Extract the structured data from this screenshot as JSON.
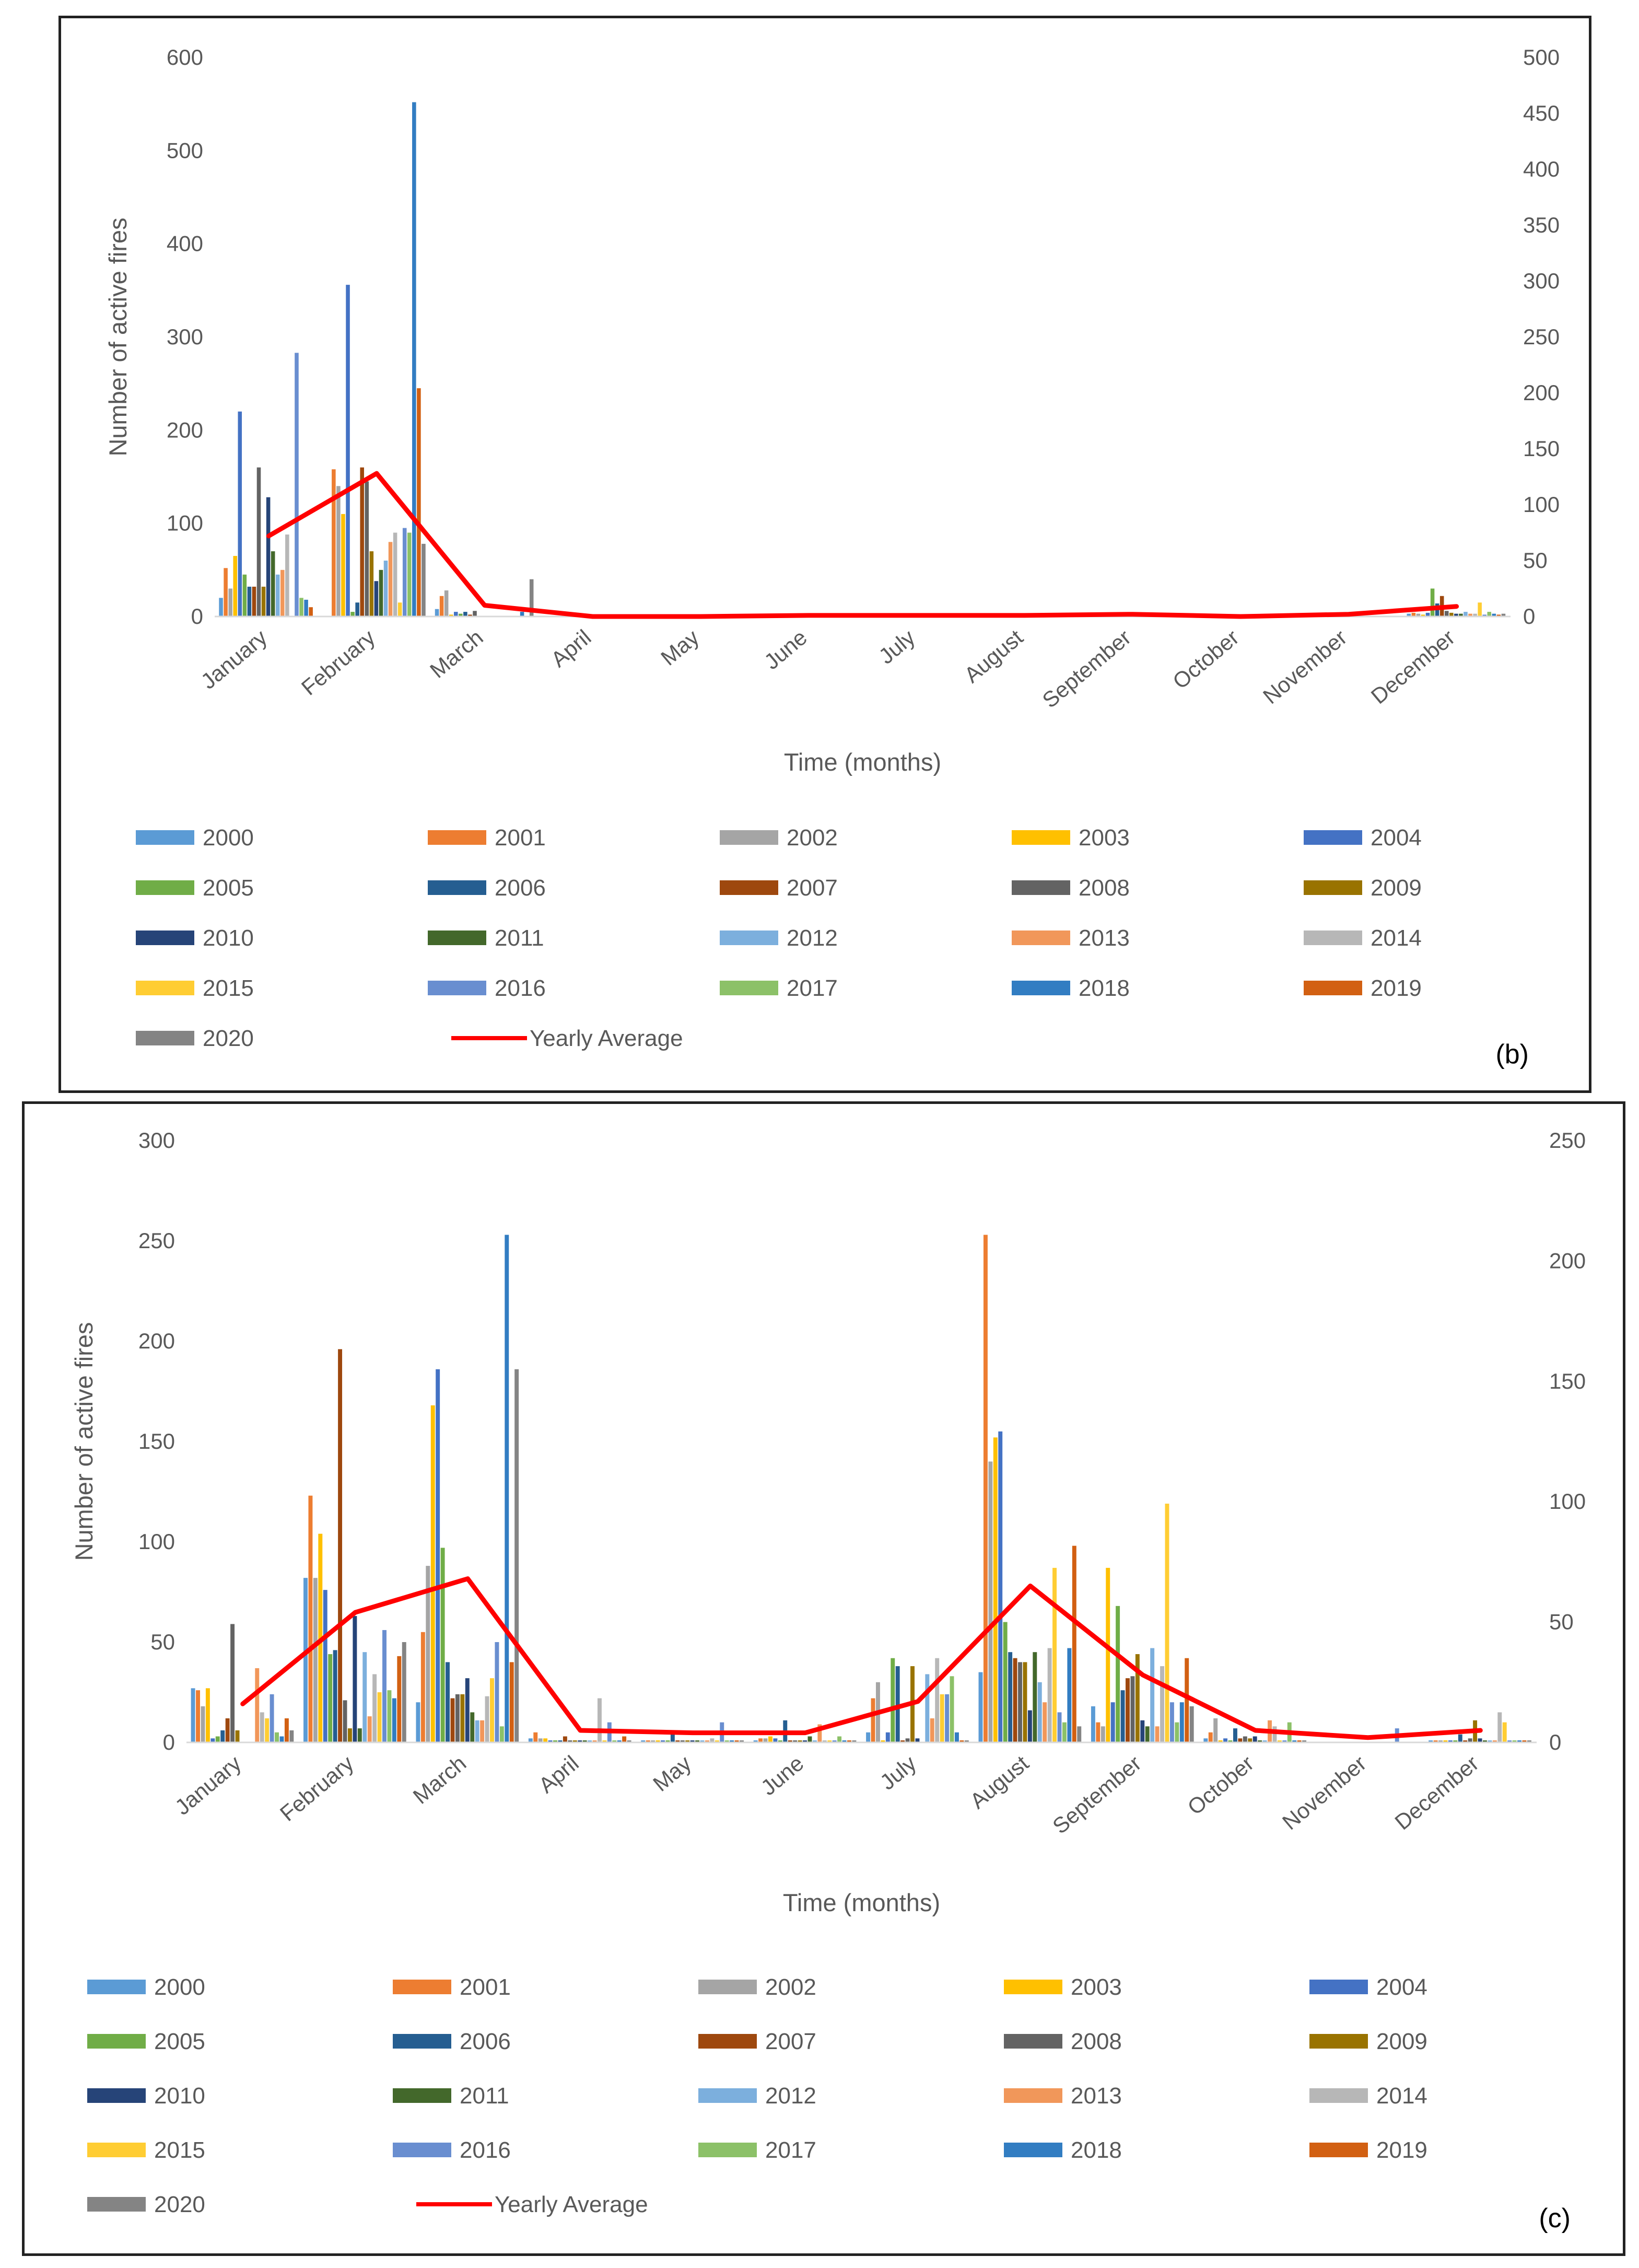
{
  "colors": {
    "2000": "#5B9BD5",
    "2001": "#ED7D31",
    "2002": "#A5A5A5",
    "2003": "#FFC000",
    "2004": "#4472C4",
    "2005": "#70AD47",
    "2006": "#255E91",
    "2007": "#9E480E",
    "2008": "#636363",
    "2009": "#997300",
    "2010": "#264478",
    "2011": "#43682B",
    "2012": "#7CAFDD",
    "2013": "#F1975A",
    "2014": "#B7B7B7",
    "2015": "#FFCD33",
    "2016": "#698ED0",
    "2017": "#8CC168",
    "2018": "#327DC2",
    "2019": "#D26012",
    "2020": "#848484",
    "average": "#FF0000"
  },
  "chart_data": [
    {
      "type": "bar",
      "panel_label": "(b)",
      "title": "",
      "xlabel": "Time (months)",
      "ylabel": "Number of active fires",
      "ylim": [
        0,
        600
      ],
      "y_ticks": [
        0,
        100,
        200,
        300,
        400,
        500,
        600
      ],
      "y2lim": [
        0,
        500
      ],
      "y2_ticks": [
        0,
        50,
        100,
        150,
        200,
        250,
        300,
        350,
        400,
        450,
        500
      ],
      "grid": false,
      "legend_position": "bottom",
      "categories": [
        "January",
        "February",
        "March",
        "April",
        "May",
        "June",
        "July",
        "August",
        "September",
        "October",
        "November",
        "December"
      ],
      "series": [
        {
          "name": "2000",
          "values": [
            20,
            0,
            8,
            0,
            0,
            0,
            0,
            0,
            0,
            0,
            0,
            3
          ]
        },
        {
          "name": "2001",
          "values": [
            52,
            158,
            22,
            0,
            0,
            0,
            0,
            0,
            0,
            0,
            0,
            4
          ]
        },
        {
          "name": "2002",
          "values": [
            30,
            140,
            28,
            0,
            0,
            0,
            0,
            0,
            0,
            0,
            0,
            3
          ]
        },
        {
          "name": "2003",
          "values": [
            65,
            110,
            2,
            0,
            0,
            0,
            0,
            0,
            0,
            0,
            0,
            2
          ]
        },
        {
          "name": "2004",
          "values": [
            220,
            356,
            5,
            0,
            0,
            0,
            0,
            0,
            0,
            0,
            0,
            4
          ]
        },
        {
          "name": "2005",
          "values": [
            45,
            5,
            3,
            0,
            0,
            0,
            0,
            0,
            0,
            0,
            0,
            30
          ]
        },
        {
          "name": "2006",
          "values": [
            32,
            15,
            5,
            0,
            0,
            0,
            0,
            0,
            0,
            0,
            0,
            14
          ]
        },
        {
          "name": "2007",
          "values": [
            32,
            160,
            2,
            0,
            0,
            0,
            0,
            0,
            0,
            0,
            0,
            22
          ]
        },
        {
          "name": "2008",
          "values": [
            160,
            145,
            6,
            0,
            0,
            0,
            0,
            0,
            0,
            0,
            0,
            6
          ]
        },
        {
          "name": "2009",
          "values": [
            32,
            70,
            0,
            0,
            0,
            0,
            0,
            0,
            0,
            0,
            0,
            4
          ]
        },
        {
          "name": "2010",
          "values": [
            128,
            38,
            0,
            0,
            0,
            0,
            0,
            0,
            0,
            0,
            0,
            3
          ]
        },
        {
          "name": "2011",
          "values": [
            70,
            50,
            0,
            0,
            0,
            0,
            0,
            0,
            0,
            0,
            0,
            3
          ]
        },
        {
          "name": "2012",
          "values": [
            45,
            60,
            0,
            0,
            0,
            0,
            0,
            0,
            0,
            0,
            0,
            5
          ]
        },
        {
          "name": "2013",
          "values": [
            50,
            80,
            0,
            0,
            0,
            0,
            0,
            0,
            0,
            0,
            0,
            3
          ]
        },
        {
          "name": "2014",
          "values": [
            88,
            90,
            0,
            0,
            0,
            0,
            0,
            0,
            0,
            0,
            0,
            3
          ]
        },
        {
          "name": "2015",
          "values": [
            0,
            15,
            0,
            0,
            0,
            0,
            0,
            0,
            0,
            0,
            0,
            15
          ]
        },
        {
          "name": "2016",
          "values": [
            283,
            95,
            0,
            0,
            0,
            0,
            0,
            0,
            0,
            0,
            0,
            2
          ]
        },
        {
          "name": "2017",
          "values": [
            20,
            90,
            0,
            0,
            0,
            0,
            0,
            0,
            0,
            0,
            0,
            5
          ]
        },
        {
          "name": "2018",
          "values": [
            18,
            552,
            5,
            0,
            0,
            0,
            0,
            0,
            0,
            0,
            0,
            3
          ]
        },
        {
          "name": "2019",
          "values": [
            10,
            245,
            0,
            0,
            0,
            0,
            0,
            0,
            0,
            0,
            0,
            2
          ]
        },
        {
          "name": "2020",
          "values": [
            0,
            78,
            40,
            0,
            0,
            0,
            0,
            0,
            0,
            0,
            0,
            3
          ]
        }
      ],
      "average": {
        "name": "Yearly Average",
        "axis": "secondary",
        "values": [
          72,
          128,
          10,
          0,
          0,
          1,
          1,
          1,
          2,
          0,
          2,
          9
        ]
      }
    },
    {
      "type": "bar",
      "panel_label": "(c)",
      "title": "",
      "xlabel": "Time (months)",
      "ylabel": "Number of active fires",
      "ylim": [
        0,
        300
      ],
      "y_ticks": [
        0,
        50,
        100,
        150,
        200,
        250,
        300
      ],
      "y2lim": [
        0,
        250
      ],
      "y2_ticks": [
        0,
        50,
        100,
        150,
        200,
        250
      ],
      "grid": false,
      "legend_position": "bottom",
      "categories": [
        "January",
        "February",
        "March",
        "April",
        "May",
        "June",
        "July",
        "August",
        "September",
        "October",
        "November",
        "December"
      ],
      "series": [
        {
          "name": "2000",
          "values": [
            27,
            82,
            20,
            2,
            1,
            1,
            5,
            35,
            18,
            2,
            0,
            1
          ]
        },
        {
          "name": "2001",
          "values": [
            26,
            123,
            55,
            5,
            1,
            2,
            22,
            253,
            10,
            5,
            0,
            1
          ]
        },
        {
          "name": "2002",
          "values": [
            18,
            82,
            88,
            2,
            1,
            2,
            30,
            140,
            8,
            12,
            0,
            1
          ]
        },
        {
          "name": "2003",
          "values": [
            27,
            104,
            168,
            2,
            1,
            3,
            1,
            152,
            87,
            1,
            0,
            1
          ]
        },
        {
          "name": "2004",
          "values": [
            2,
            76,
            186,
            1,
            1,
            2,
            5,
            155,
            20,
            2,
            0,
            1
          ]
        },
        {
          "name": "2005",
          "values": [
            3,
            44,
            97,
            1,
            1,
            1,
            42,
            60,
            68,
            1,
            0,
            1
          ]
        },
        {
          "name": "2006",
          "values": [
            6,
            46,
            40,
            1,
            4,
            11,
            38,
            45,
            26,
            7,
            0,
            4
          ]
        },
        {
          "name": "2007",
          "values": [
            12,
            196,
            22,
            3,
            1,
            1,
            1,
            42,
            32,
            2,
            0,
            1
          ]
        },
        {
          "name": "2008",
          "values": [
            59,
            21,
            24,
            1,
            1,
            1,
            2,
            40,
            33,
            3,
            0,
            2
          ]
        },
        {
          "name": "2009",
          "values": [
            6,
            7,
            24,
            1,
            1,
            1,
            38,
            40,
            44,
            2,
            0,
            11
          ]
        },
        {
          "name": "2010",
          "values": [
            0,
            63,
            32,
            1,
            1,
            1,
            2,
            16,
            11,
            3,
            0,
            2
          ]
        },
        {
          "name": "2011",
          "values": [
            0,
            7,
            15,
            1,
            1,
            3,
            0,
            45,
            8,
            1,
            0,
            1
          ]
        },
        {
          "name": "2012",
          "values": [
            0,
            45,
            11,
            1,
            1,
            1,
            34,
            30,
            47,
            1,
            0,
            1
          ]
        },
        {
          "name": "2013",
          "values": [
            37,
            13,
            11,
            1,
            1,
            9,
            12,
            20,
            8,
            11,
            0,
            1
          ]
        },
        {
          "name": "2014",
          "values": [
            15,
            34,
            23,
            22,
            2,
            1,
            42,
            47,
            38,
            8,
            0,
            15
          ]
        },
        {
          "name": "2015",
          "values": [
            12,
            25,
            32,
            1,
            1,
            1,
            24,
            87,
            119,
            1,
            0,
            10
          ]
        },
        {
          "name": "2016",
          "values": [
            24,
            56,
            50,
            10,
            10,
            1,
            24,
            15,
            20,
            1,
            7,
            1
          ]
        },
        {
          "name": "2017",
          "values": [
            5,
            26,
            8,
            1,
            1,
            3,
            33,
            10,
            10,
            10,
            0,
            1
          ]
        },
        {
          "name": "2018",
          "values": [
            3,
            22,
            253,
            1,
            1,
            1,
            5,
            47,
            20,
            1,
            0,
            1
          ]
        },
        {
          "name": "2019",
          "values": [
            12,
            43,
            40,
            3,
            1,
            1,
            1,
            98,
            42,
            1,
            0,
            1
          ]
        },
        {
          "name": "2020",
          "values": [
            6,
            50,
            186,
            1,
            1,
            1,
            1,
            8,
            18,
            1,
            0,
            1
          ]
        }
      ],
      "average": {
        "name": "Yearly Average",
        "axis": "secondary",
        "values": [
          16,
          54,
          68,
          5,
          4,
          4,
          17,
          65,
          28,
          5,
          2,
          5
        ]
      }
    }
  ]
}
